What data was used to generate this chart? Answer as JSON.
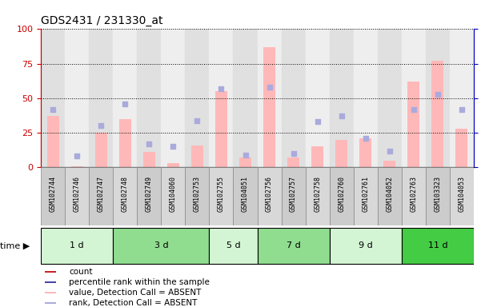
{
  "title": "GDS2431 / 231330_at",
  "samples": [
    "GSM102744",
    "GSM102746",
    "GSM102747",
    "GSM102748",
    "GSM102749",
    "GSM104060",
    "GSM102753",
    "GSM102755",
    "GSM104051",
    "GSM102756",
    "GSM102757",
    "GSM102758",
    "GSM102760",
    "GSM102761",
    "GSM104052",
    "GSM102763",
    "GSM103323",
    "GSM104053"
  ],
  "time_groups": [
    {
      "label": "1 d",
      "start": 0,
      "end": 2,
      "color": "#d4f5d4"
    },
    {
      "label": "3 d",
      "start": 3,
      "end": 6,
      "color": "#90dd90"
    },
    {
      "label": "5 d",
      "start": 7,
      "end": 8,
      "color": "#d4f5d4"
    },
    {
      "label": "7 d",
      "start": 9,
      "end": 11,
      "color": "#90dd90"
    },
    {
      "label": "9 d",
      "start": 12,
      "end": 14,
      "color": "#d4f5d4"
    },
    {
      "label": "11 d",
      "start": 15,
      "end": 17,
      "color": "#44cc44"
    }
  ],
  "bar_values_pink": [
    37,
    1,
    25,
    35,
    11,
    3,
    16,
    55,
    7,
    87,
    7,
    15,
    20,
    21,
    5,
    62,
    77,
    28
  ],
  "scatter_blue": [
    42,
    8,
    30,
    46,
    17,
    15,
    34,
    57,
    9,
    58,
    10,
    33,
    37,
    21,
    12,
    42,
    53,
    42
  ],
  "ylim_left": [
    0,
    100
  ],
  "ylim_right": [
    0,
    100
  ],
  "yticks": [
    0,
    25,
    50,
    75,
    100
  ],
  "bar_color_pink": "#ffb8b8",
  "scatter_color_blue": "#aaaadd",
  "bar_color_red": "#cc2222",
  "scatter_color_darkblue": "#4444aa",
  "axis_left_color": "#cc0000",
  "axis_right_color": "#0000cc",
  "plot_bg_color": "#ffffff",
  "col_even_color": "#e0e0e0",
  "col_odd_color": "#eeeeee",
  "label_area_color": "#d8d8d8",
  "legend_labels": [
    "count",
    "percentile rank within the sample",
    "value, Detection Call = ABSENT",
    "rank, Detection Call = ABSENT"
  ],
  "legend_colors": [
    "#cc2222",
    "#4444aa",
    "#ffb8b8",
    "#aaaadd"
  ]
}
